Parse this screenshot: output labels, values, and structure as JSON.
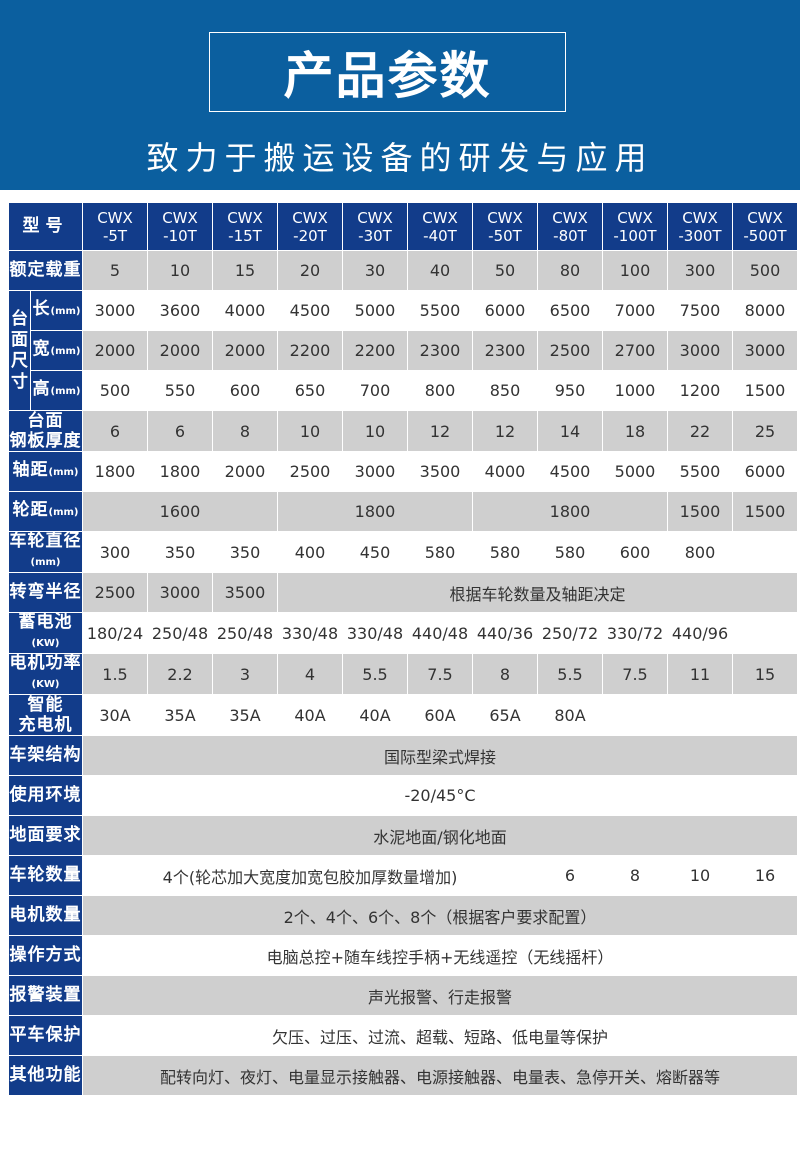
{
  "header": {
    "title": "产品参数",
    "subtitle": "致力于搬运设备的研发与应用"
  },
  "colors": {
    "banner": "#0b5f9f",
    "label_bg": "#123c8a",
    "gray_row": "#cfcfcf"
  },
  "table": {
    "model_label": "型号",
    "models": [
      "CWX\n-5T",
      "CWX\n-10T",
      "CWX\n-15T",
      "CWX\n-20T",
      "CWX\n-30T",
      "CWX\n-40T",
      "CWX\n-50T",
      "CWX\n-80T",
      "CWX\n-100T",
      "CWX\n-300T",
      "CWX\n-500T"
    ],
    "dimension_group": "台面尺寸",
    "rows": [
      {
        "label": "额定载重",
        "cells": [
          "5",
          "10",
          "15",
          "20",
          "30",
          "40",
          "50",
          "80",
          "100",
          "300",
          "500"
        ]
      },
      {
        "label": "长",
        "unit": "(mm)",
        "group": true,
        "cells": [
          "3000",
          "3600",
          "4000",
          "4500",
          "5000",
          "5500",
          "6000",
          "6500",
          "7000",
          "7500",
          "8000"
        ]
      },
      {
        "label": "宽",
        "unit": "(mm)",
        "group": true,
        "cells": [
          "2000",
          "2000",
          "2000",
          "2200",
          "2200",
          "2300",
          "2300",
          "2500",
          "2700",
          "3000",
          "3000"
        ]
      },
      {
        "label": "高",
        "unit": "(mm)",
        "group": true,
        "cells": [
          "500",
          "550",
          "600",
          "650",
          "700",
          "800",
          "850",
          "950",
          "1000",
          "1200",
          "1500"
        ]
      },
      {
        "label": "台面\n钢板厚度",
        "cells": [
          "6",
          "6",
          "8",
          "10",
          "10",
          "12",
          "12",
          "14",
          "18",
          "22",
          "25"
        ]
      },
      {
        "label": "轴距",
        "unit": "(mm)",
        "cells": [
          "1800",
          "1800",
          "2000",
          "2500",
          "3000",
          "3500",
          "4000",
          "4500",
          "5000",
          "5500",
          "6000"
        ]
      },
      {
        "label": "轮距",
        "unit": "(mm)",
        "cells": [
          {
            "text": "1600",
            "span": 3
          },
          {
            "text": "1800",
            "span": 3
          },
          {
            "text": "1800",
            "span": 3
          },
          "1500",
          "1500"
        ]
      },
      {
        "label": "车轮直径",
        "unit": "(mm)",
        "unit_below": true,
        "cells": [
          "300",
          "350",
          "350",
          "400",
          "450",
          "580",
          "580",
          "580",
          "600",
          "800",
          ""
        ]
      },
      {
        "label": "转弯半径",
        "cells": [
          "2500",
          "3000",
          "3500",
          {
            "text": "根据车轮数量及轴距决定",
            "span": 8
          }
        ]
      },
      {
        "label": "蓄电池",
        "unit": "(KW)",
        "unit_below": true,
        "cells": [
          "180/24",
          "250/48",
          "250/48",
          "330/48",
          "330/48",
          "440/48",
          "440/36",
          "250/72",
          "330/72",
          "440/96",
          ""
        ]
      },
      {
        "label": "电机功率",
        "unit": "(KW)",
        "unit_below": true,
        "cells": [
          "1.5",
          "2.2",
          "3",
          "4",
          "5.5",
          "7.5",
          "8",
          "5.5",
          "7.5",
          "11",
          "15"
        ]
      },
      {
        "label": "智能\n充电机",
        "cells": [
          "30A",
          "35A",
          "35A",
          "40A",
          "40A",
          "60A",
          "65A",
          "80A",
          "",
          "",
          ""
        ]
      },
      {
        "label": "车架结构",
        "cells": [
          {
            "text": "国际型梁式焊接",
            "span": 11
          }
        ]
      },
      {
        "label": "使用环境",
        "cells": [
          {
            "text": "-20/45°C",
            "span": 11
          }
        ]
      },
      {
        "label": "地面要求",
        "cells": [
          {
            "text": "水泥地面/钢化地面",
            "span": 11
          }
        ]
      },
      {
        "label": "车轮数量",
        "cells": [
          {
            "text": "4个(轮芯加大宽度加宽包胶加厚数量增加)",
            "span": 7
          },
          "6",
          "8",
          "10",
          "16"
        ]
      },
      {
        "label": "电机数量",
        "cells": [
          {
            "text": "2个、4个、6个、8个（根据客户要求配置）",
            "span": 11
          }
        ]
      },
      {
        "label": "操作方式",
        "cells": [
          {
            "text": "电脑总控+随车线控手柄+无线遥控（无线摇杆）",
            "span": 11
          }
        ]
      },
      {
        "label": "报警装置",
        "cells": [
          {
            "text": "声光报警、行走报警",
            "span": 11
          }
        ]
      },
      {
        "label": "平车保护",
        "cells": [
          {
            "text": "欠压、过压、过流、超载、短路、低电量等保护",
            "span": 11
          }
        ]
      },
      {
        "label": "其他功能",
        "cells": [
          {
            "text": "配转向灯、夜灯、电量显示接触器、电源接触器、电量表、急停开关、熔断器等",
            "span": 11
          }
        ]
      }
    ]
  }
}
